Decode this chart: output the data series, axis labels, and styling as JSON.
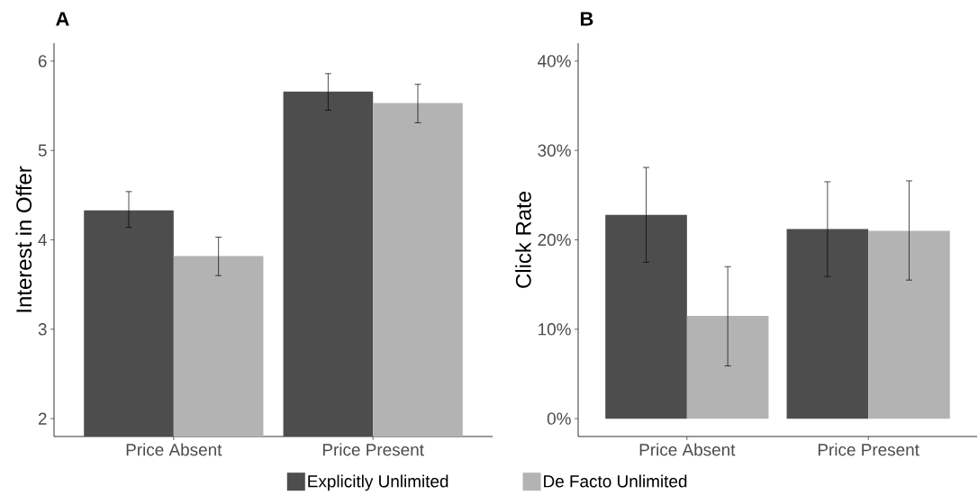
{
  "chart_data": [
    {
      "type": "bar",
      "title": "A",
      "ylabel": "Interest in Offer",
      "categories": [
        "Price Absent",
        "Price Present"
      ],
      "ylim": [
        1.8,
        6.2
      ],
      "yticks": [
        2,
        3,
        4,
        5,
        6
      ],
      "legend": "bottom",
      "series": [
        {
          "name": "Explicitly Unlimited",
          "color": "#4d4d4d",
          "values": [
            4.33,
            5.66
          ],
          "errors": [
            [
              4.14,
              4.54
            ],
            [
              5.45,
              5.86
            ]
          ]
        },
        {
          "name": "De Facto Unlimited",
          "color": "#b3b3b3",
          "values": [
            3.82,
            5.53
          ],
          "errors": [
            [
              3.6,
              4.03
            ],
            [
              5.31,
              5.74
            ]
          ]
        }
      ]
    },
    {
      "type": "bar",
      "title": "B",
      "ylabel": "Click Rate",
      "categories": [
        "Price Absent",
        "Price Present"
      ],
      "ylim": [
        -2,
        42
      ],
      "yticks": [
        {
          "value": 0,
          "label": "0%"
        },
        {
          "value": 10,
          "label": "10%"
        },
        {
          "value": 20,
          "label": "20%"
        },
        {
          "value": 30,
          "label": "30%"
        },
        {
          "value": 40,
          "label": "40%"
        }
      ],
      "series": [
        {
          "color": "#4d4d4d",
          "values": [
            22.8,
            21.2
          ],
          "errors": [
            [
              17.5,
              28.1
            ],
            [
              15.9,
              26.5
            ]
          ]
        },
        {
          "color": "#b3b3b3",
          "values": [
            11.5,
            21.0
          ],
          "errors": [
            [
              5.9,
              17.0
            ],
            [
              15.5,
              26.6
            ]
          ]
        }
      ]
    }
  ]
}
